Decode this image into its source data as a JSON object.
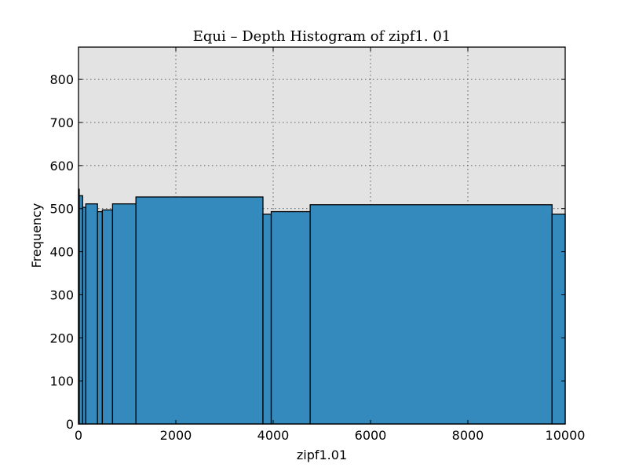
{
  "chart_data": {
    "type": "bar",
    "title": "Equi – Depth Histogram of zipf1. 01",
    "xlabel": "zipf1.01",
    "ylabel": "Frequency",
    "xlim": [
      0,
      10000
    ],
    "ylim": [
      0,
      875
    ],
    "x_ticks": [
      0,
      2000,
      4000,
      6000,
      8000,
      10000
    ],
    "y_ticks": [
      0,
      100,
      200,
      300,
      400,
      500,
      600,
      700,
      800
    ],
    "grid": true,
    "background_color": "#e3e3e3",
    "bar_color": "#348abd",
    "edge_color": "#000000",
    "bins": [
      {
        "x0": 0,
        "x1": 15,
        "value": 545
      },
      {
        "x0": 15,
        "x1": 85,
        "value": 530
      },
      {
        "x0": 85,
        "x1": 150,
        "value": 503
      },
      {
        "x0": 150,
        "x1": 390,
        "value": 511
      },
      {
        "x0": 390,
        "x1": 490,
        "value": 493
      },
      {
        "x0": 490,
        "x1": 700,
        "value": 497
      },
      {
        "x0": 700,
        "x1": 1180,
        "value": 511
      },
      {
        "x0": 1180,
        "x1": 3790,
        "value": 527
      },
      {
        "x0": 3790,
        "x1": 3960,
        "value": 487
      },
      {
        "x0": 3960,
        "x1": 4760,
        "value": 493
      },
      {
        "x0": 4760,
        "x1": 9730,
        "value": 509
      },
      {
        "x0": 9730,
        "x1": 10000,
        "value": 487
      }
    ]
  }
}
